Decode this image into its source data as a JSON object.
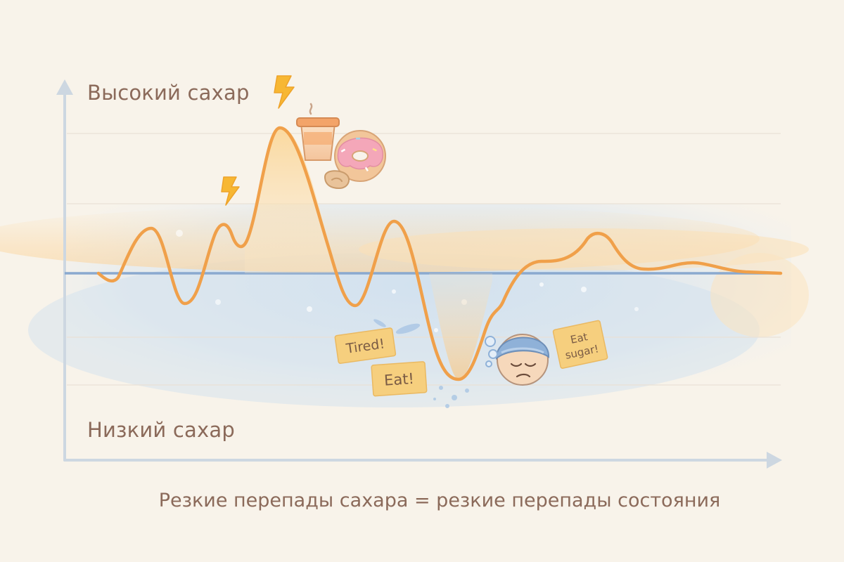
{
  "axis_labels": {
    "high": "Высокий сахар",
    "low": "Низкий сахар"
  },
  "caption": "Резкие перепады сахара = резкие перепады состояния",
  "notes": {
    "tired": "Tired!",
    "eat": "Eat!",
    "eat_sugar_line1": "Eat",
    "eat_sugar_line2": "sugar!"
  },
  "icons": [
    "lightning-bolt-icon",
    "coffee-cup-icon",
    "donut-icon",
    "cookie-icon",
    "sleepy-face-icon"
  ],
  "colors": {
    "curve": "#f0a04a",
    "baseline": "#8aa9cf",
    "text": "#8b6a5a",
    "note": "#f6cf7e",
    "background": "#f8f3ea"
  }
}
